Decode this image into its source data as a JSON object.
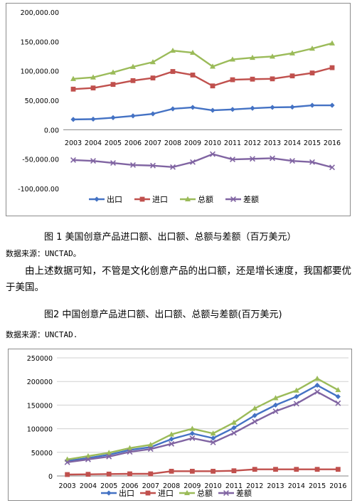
{
  "figure1": {
    "caption": "图 1 美国创意产品进口额、出口额、总额与差额（百万美元）",
    "source": "数据来源：UNCTAD。"
  },
  "paragraph": "由上述数据可知，不管是文化创意产品的出口额，还是增长速度，我国都要优于美国。",
  "figure2": {
    "caption": "图2 中国创意产品进口额、出口额、总额与差额(百万美元)",
    "source": "数据来源：UNCTAD."
  },
  "chart_data": [
    {
      "type": "line",
      "title": "",
      "categories": [
        "2003",
        "2004",
        "2005",
        "2006",
        "2007",
        "2008",
        "2009",
        "2010",
        "2011",
        "2012",
        "2013",
        "2014",
        "2015",
        "2016"
      ],
      "ylim": [
        -100000,
        200000
      ],
      "yticks": [
        -100000,
        -50000,
        0,
        50000,
        100000,
        150000,
        200000
      ],
      "ytick_labels": [
        "-100,000.00",
        "-50,000.00",
        "0.00",
        "50,000.00",
        "100,000.00",
        "150,000.00",
        "200,000.00"
      ],
      "legend_position": "bottom",
      "grid": false,
      "series": [
        {
          "name": "出口",
          "color": "#4472C4",
          "marker": "diamond",
          "values": [
            17500,
            18000,
            20500,
            23500,
            27000,
            35500,
            38000,
            33000,
            34500,
            36500,
            38000,
            38500,
            41500,
            41500
          ]
        },
        {
          "name": "进口",
          "color": "#C0504D",
          "marker": "square",
          "values": [
            69000,
            71000,
            77000,
            83500,
            88000,
            99000,
            93000,
            74500,
            85000,
            86000,
            86500,
            91500,
            96500,
            105500
          ]
        },
        {
          "name": "总额",
          "color": "#9BBB59",
          "marker": "triangle",
          "values": [
            86500,
            89000,
            97500,
            107000,
            115000,
            134500,
            131000,
            107500,
            119500,
            122500,
            124500,
            130000,
            138000,
            147000
          ]
        },
        {
          "name": "差额",
          "color": "#8064A2",
          "marker": "x",
          "values": [
            -51500,
            -53000,
            -56500,
            -60000,
            -61000,
            -63500,
            -55000,
            -41500,
            -50500,
            -49500,
            -48500,
            -53000,
            -55000,
            -64000
          ]
        }
      ]
    },
    {
      "type": "line",
      "title": "",
      "categories": [
        "2003",
        "2004",
        "2005",
        "2006",
        "2007",
        "2008",
        "2009",
        "2010",
        "2011",
        "2012",
        "2013",
        "2014",
        "2015",
        "2016"
      ],
      "ylim": [
        0,
        250000
      ],
      "yticks": [
        0,
        50000,
        100000,
        150000,
        200000,
        250000
      ],
      "ytick_labels": [
        "0",
        "50000",
        "100000",
        "150000",
        "200000",
        "250000"
      ],
      "legend_position": "bottom",
      "grid": true,
      "series": [
        {
          "name": "出口",
          "color": "#4472C4",
          "marker": "diamond",
          "values": [
            32000,
            38000,
            45000,
            55000,
            61000,
            78000,
            90000,
            80000,
            102000,
            128000,
            150000,
            168000,
            192000,
            168000
          ]
        },
        {
          "name": "进口",
          "color": "#C0504D",
          "marker": "square",
          "values": [
            3000,
            3500,
            4000,
            4500,
            4500,
            10000,
            10000,
            10000,
            11000,
            14000,
            14000,
            14000,
            14000,
            14000
          ]
        },
        {
          "name": "总额",
          "color": "#9BBB59",
          "marker": "triangle",
          "values": [
            35000,
            42000,
            49000,
            59000,
            66000,
            88000,
            100000,
            90000,
            113000,
            143000,
            165000,
            181000,
            206000,
            182000
          ]
        },
        {
          "name": "差额",
          "color": "#8064A2",
          "marker": "x",
          "values": [
            29000,
            35000,
            41000,
            51000,
            57000,
            68000,
            80000,
            71000,
            91000,
            115000,
            137000,
            153000,
            178000,
            154000
          ]
        }
      ]
    }
  ]
}
